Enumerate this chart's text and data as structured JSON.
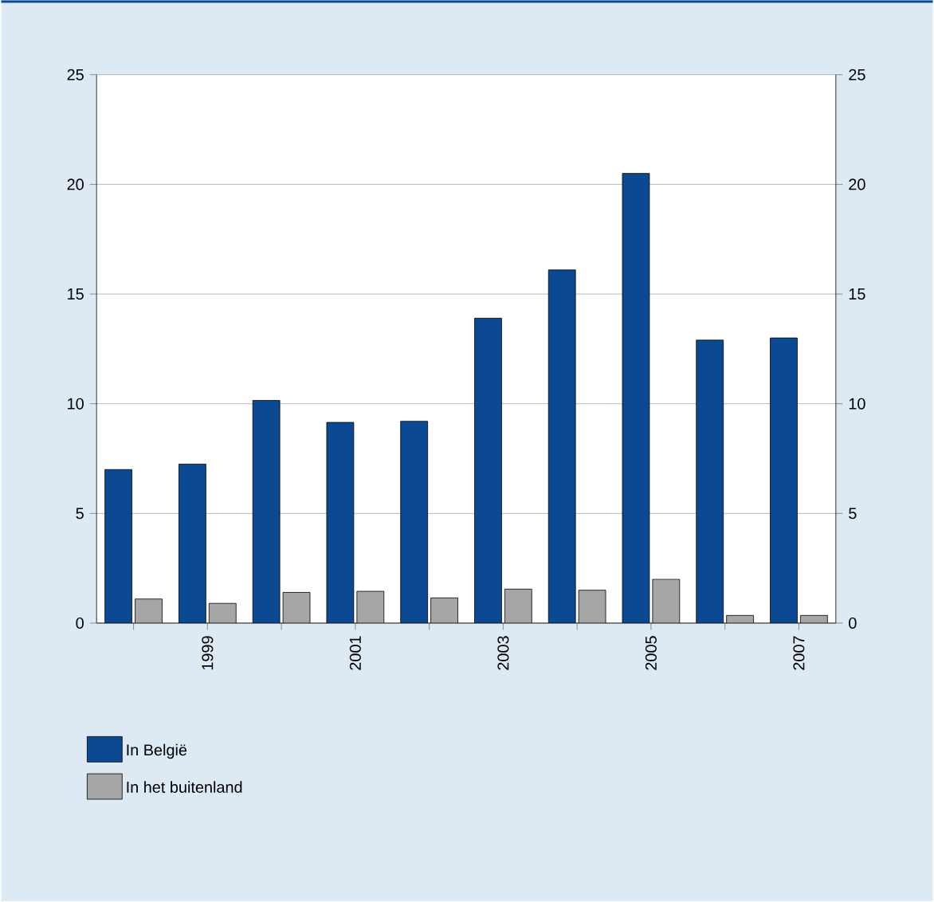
{
  "chart_data": {
    "type": "bar",
    "categories": [
      null,
      "1999",
      null,
      "2001",
      null,
      "2003",
      null,
      "2005",
      null,
      "2007"
    ],
    "series": [
      {
        "name": "In België",
        "color": "#0b4a92",
        "values": [
          7.0,
          7.25,
          10.15,
          9.15,
          9.2,
          13.9,
          16.1,
          20.5,
          12.9,
          13.0
        ]
      },
      {
        "name": "In het buitenland",
        "color": "#a6a6a6",
        "values": [
          1.1,
          0.9,
          1.4,
          1.45,
          1.15,
          1.55,
          1.5,
          2.0,
          0.35,
          0.35
        ]
      }
    ],
    "ylim": [
      0,
      25
    ],
    "yticks": [
      0,
      5,
      10,
      15,
      20,
      25
    ],
    "y2lim": [
      0,
      25
    ],
    "y2ticks": [
      0,
      5,
      10,
      15,
      20,
      25
    ],
    "grid": "y",
    "legend": "bottom"
  }
}
